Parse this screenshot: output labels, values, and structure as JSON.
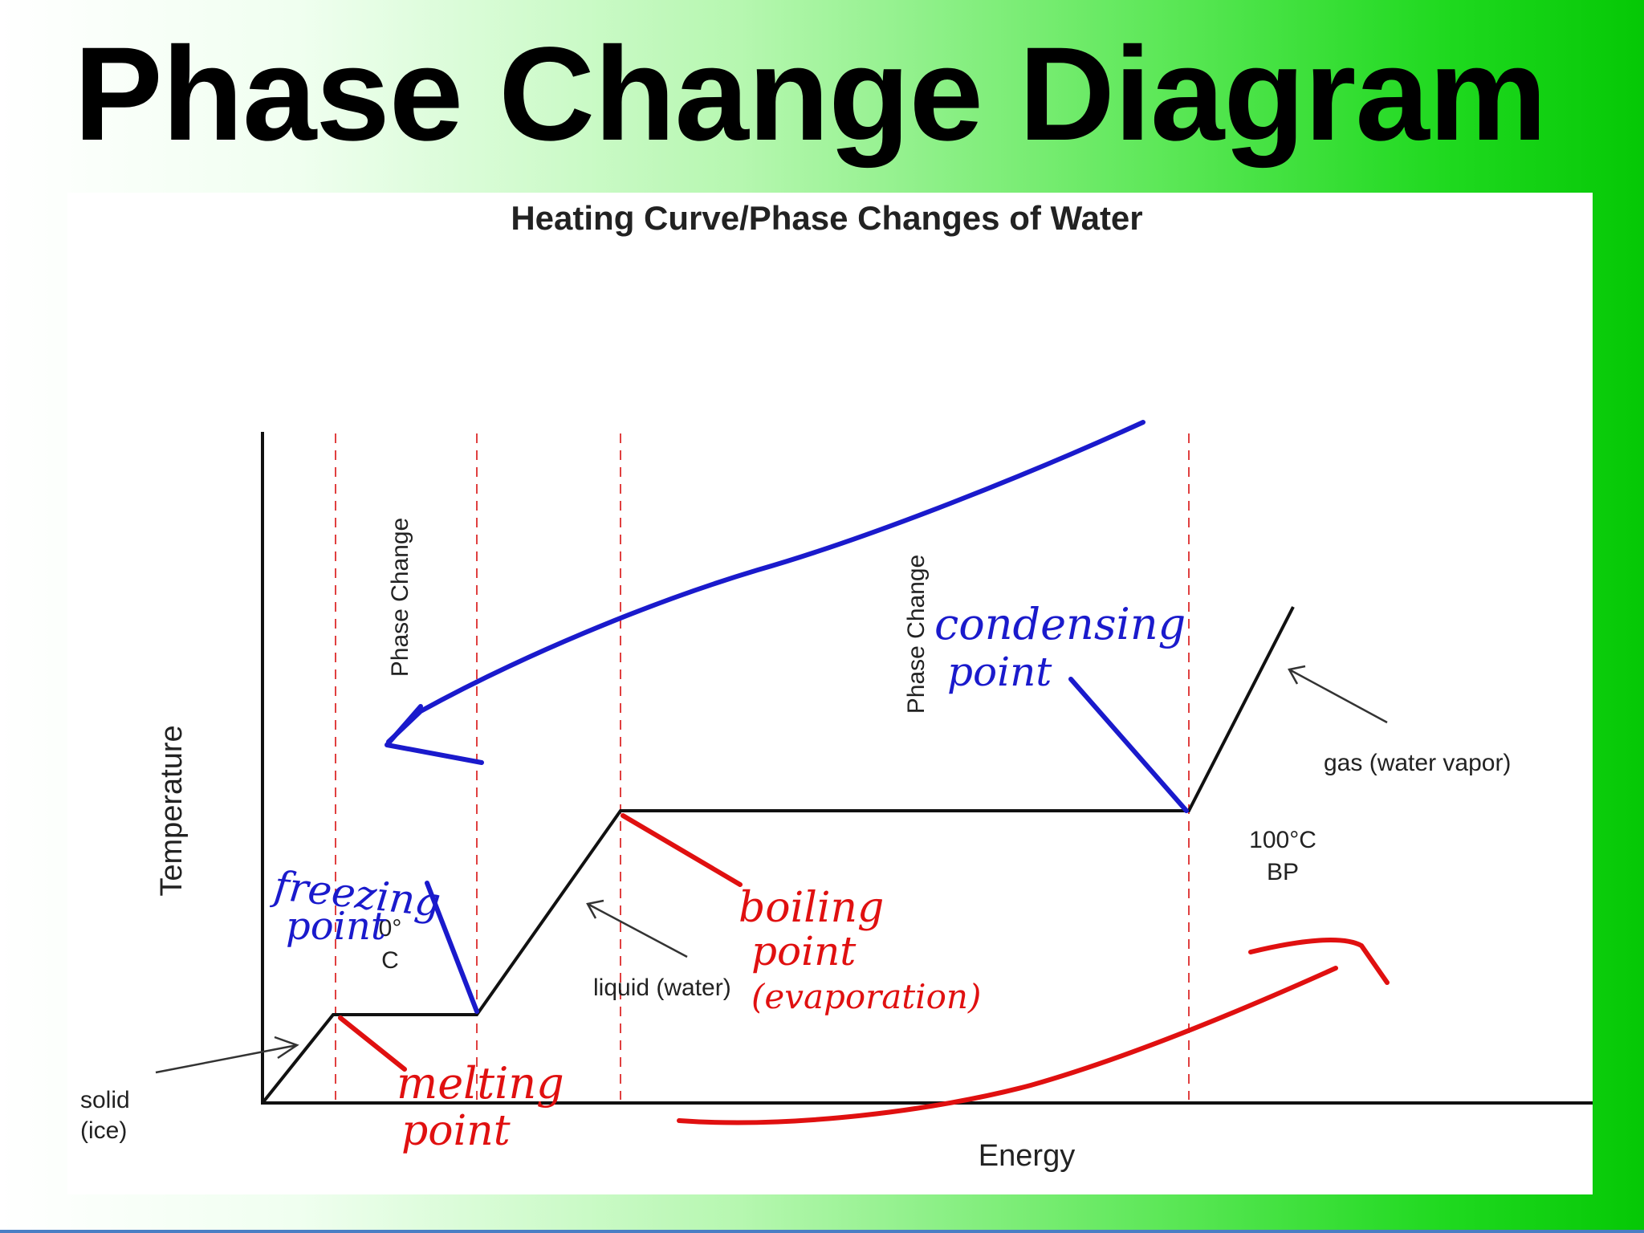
{
  "slide": {
    "title": "Phase Change Diagram"
  },
  "chart": {
    "title": "Heating Curve/Phase Changes of Water",
    "x_axis_label": "Energy",
    "y_axis_label": "Temperature",
    "region_labels": [
      "Phase Change",
      "Phase Change"
    ],
    "state_labels": {
      "solid_line1": "solid",
      "solid_line2": "(ice)",
      "liquid": "liquid (water)",
      "gas": "gas (water vapor)"
    },
    "temperature_labels": {
      "freeze_line1": "0°",
      "freeze_line2": "C",
      "boil_line1": "100°C",
      "boil_line2": "BP"
    },
    "colors": {
      "curve": "#111111",
      "dashed": "#e04040",
      "blue_ink": "#1a1acc",
      "red_ink": "#e01010"
    }
  },
  "annotations": {
    "freezing_line1": "freezing",
    "freezing_line2": "point",
    "melting_line1": "melting",
    "melting_line2": "point",
    "boiling_line1": "boiling",
    "boiling_line2": "point",
    "boiling_line3": "(evaporation)",
    "condensing_line1": "condensing",
    "condensing_line2": "point"
  }
}
